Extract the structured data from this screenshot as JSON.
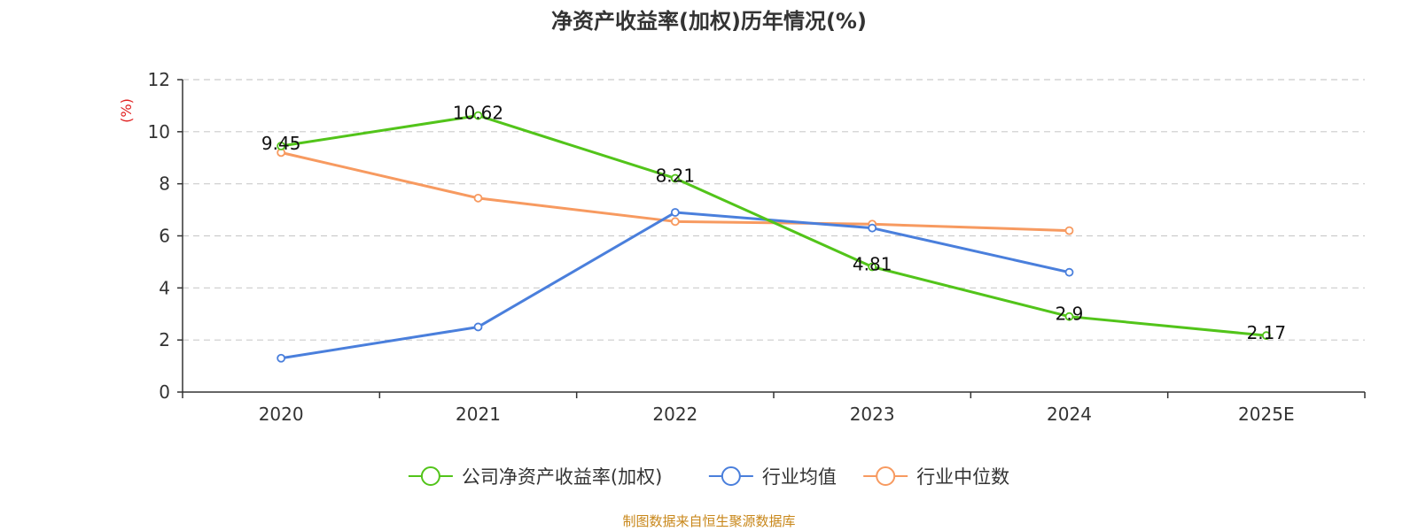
{
  "chart_data": {
    "type": "line",
    "title": "净资产收益率(加权)历年情况(%)",
    "ylabel": "(%)",
    "xlabel": "",
    "categories": [
      "2020",
      "2021",
      "2022",
      "2023",
      "2024",
      "2025E"
    ],
    "y_ticks": [
      "0",
      "2",
      "4",
      "6",
      "8",
      "10",
      "12"
    ],
    "ylim": [
      0,
      12
    ],
    "grid": "horizontal-dashed",
    "legend_position": "bottom-center",
    "series": [
      {
        "name": "公司净资产收益率(加权)",
        "color": "#52c41a",
        "values": [
          9.45,
          10.62,
          8.21,
          4.81,
          2.9,
          2.17
        ],
        "labels": [
          "9.45",
          "10.62",
          "8.21",
          "4.81",
          "2.9",
          "2.17"
        ],
        "show_labels": true
      },
      {
        "name": "行业均值",
        "color": "#4a7fdc",
        "values": [
          1.3,
          2.5,
          6.9,
          6.3,
          4.6,
          null
        ],
        "show_labels": false
      },
      {
        "name": "行业中位数",
        "color": "#f79a60",
        "values": [
          9.2,
          7.45,
          6.55,
          6.45,
          6.2,
          null
        ],
        "show_labels": false
      }
    ],
    "source": "制图数据来自恒生聚源数据库"
  }
}
